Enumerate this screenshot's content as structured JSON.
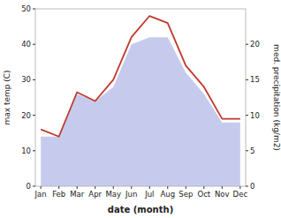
{
  "chart_data": {
    "type": "line",
    "xlabel": "date (month)",
    "ylabel": "max temp (C)",
    "y2label": "med. precipitation (kg/m2)",
    "categories": [
      "Jan",
      "Feb",
      "Mar",
      "Apr",
      "May",
      "Jun",
      "Jul",
      "Aug",
      "Sep",
      "Oct",
      "Nov",
      "Dec"
    ],
    "series": [
      {
        "type": "area",
        "axis": "y2",
        "color": "#b3b9e8",
        "values": [
          7.0,
          7.0,
          13.0,
          12.0,
          14.0,
          20.0,
          21.0,
          21.0,
          16.0,
          13.0,
          9.0,
          9.0
        ]
      },
      {
        "type": "line",
        "color": "#c0392b",
        "values": [
          16.0,
          14.0,
          26.5,
          24.0,
          30.0,
          42.0,
          48.0,
          46.0,
          34.0,
          28.0,
          19.0,
          19.0
        ]
      }
    ],
    "ylim": [
      0,
      50
    ],
    "yticks": [
      0,
      10,
      20,
      30,
      40,
      50
    ],
    "y2lim": [
      0,
      25
    ],
    "y2ticks": [
      0,
      5,
      10,
      15,
      20
    ],
    "grid": false
  }
}
